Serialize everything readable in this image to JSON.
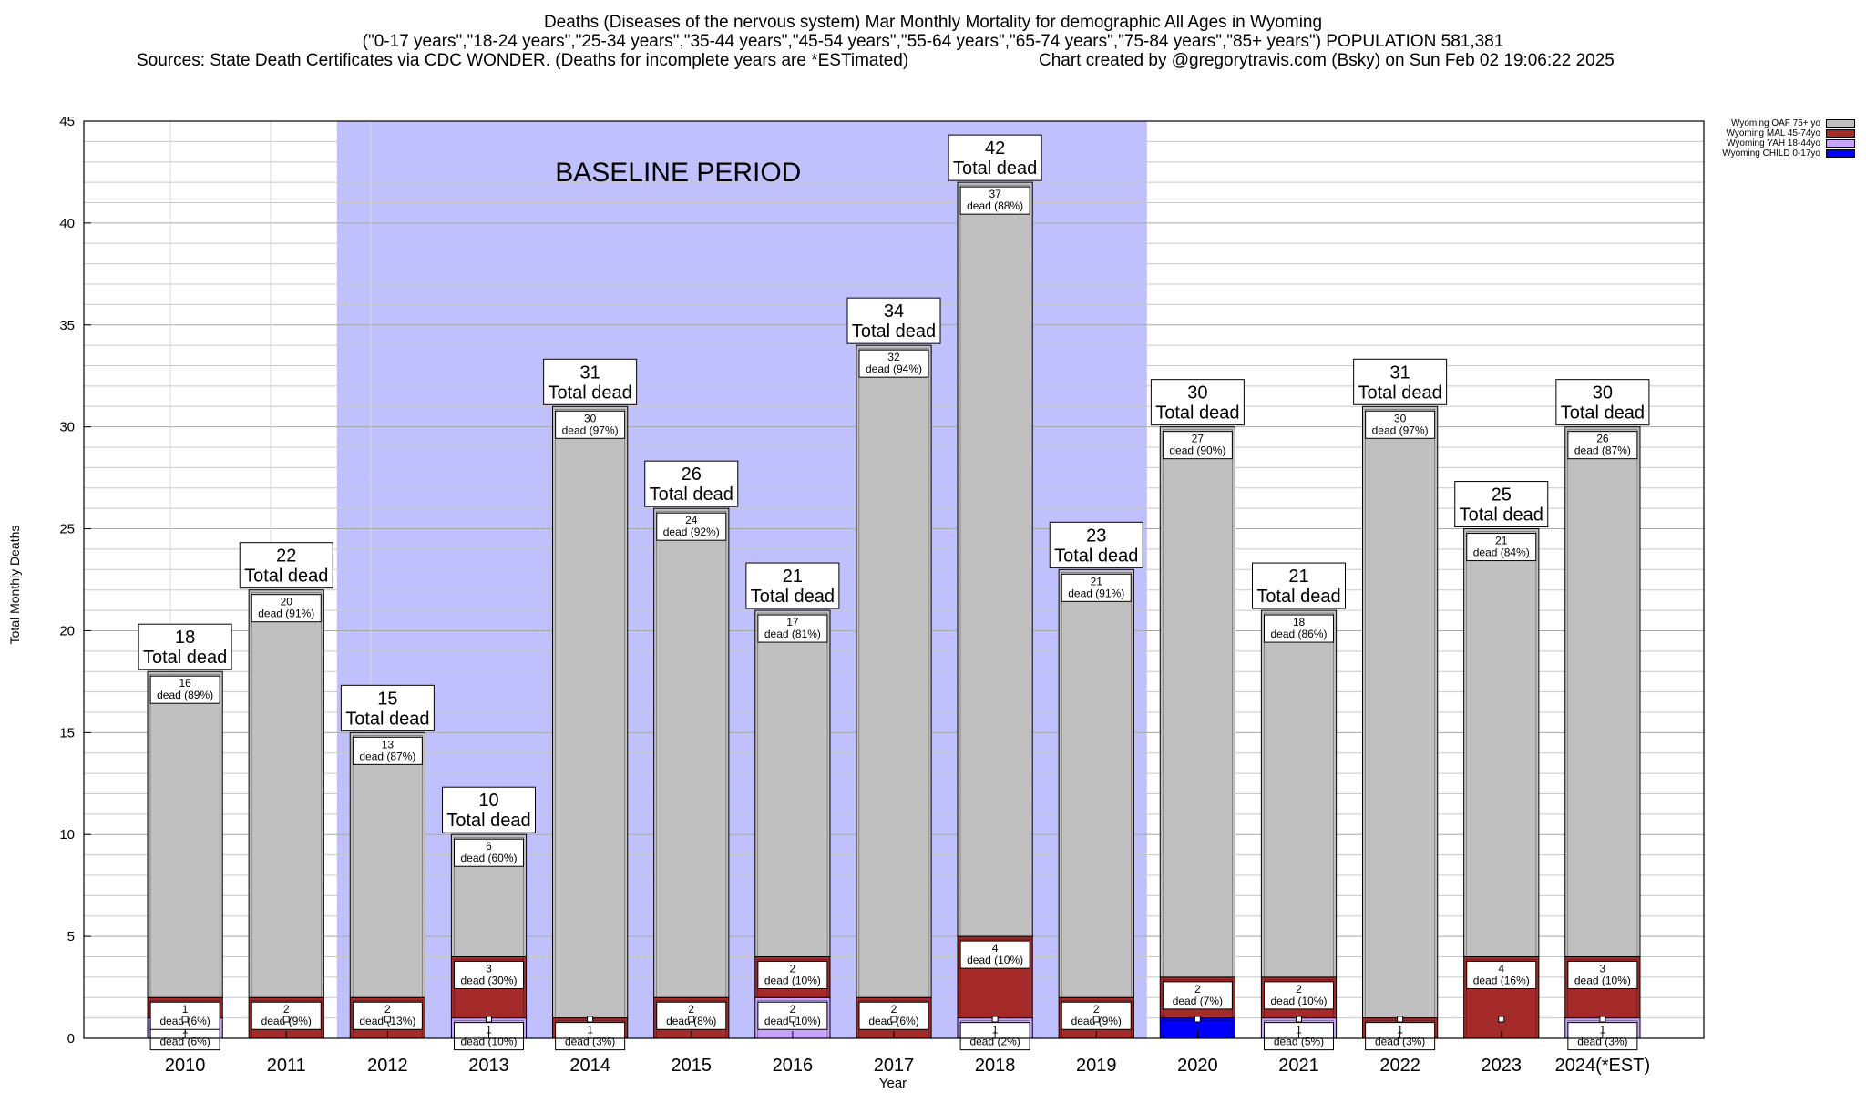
{
  "header": {
    "title_line1": "Deaths (Diseases of the nervous system) Mar Monthly Mortality for demographic All Ages in Wyoming",
    "title_line2": "(\"0-17 years\",\"18-24 years\",\"25-34 years\",\"35-44 years\",\"45-54 years\",\"55-64 years\",\"65-74 years\",\"75-84 years\",\"85+ years\") POPULATION 581,381",
    "sources": "Sources: State Death Certificates via CDC WONDER. (Deaths for incomplete years are *ESTimated)",
    "credit": "Chart created by @gregorytravis.com (Bsky) on Sun Feb 02 19:06:22 2025"
  },
  "legend": {
    "items": [
      {
        "label": "Wyoming OAF 75+ yo",
        "color": "#c0c0c0"
      },
      {
        "label": "Wyoming MAL 45-74yo",
        "color": "#a52a2a"
      },
      {
        "label": "Wyoming YAH 18-44yo",
        "color": "#c8a2ff"
      },
      {
        "label": "Wyoming CHILD 0-17yo",
        "color": "#0000ff"
      }
    ]
  },
  "chart_data": {
    "type": "bar",
    "stacked": true,
    "title": "Deaths (Diseases of the nervous system) Mar Monthly Mortality for demographic All Ages in Wyoming",
    "xlabel": "Year",
    "ylabel": "Total Monthly Deaths",
    "ylim": [
      0,
      45
    ],
    "yticks": [
      0,
      5,
      10,
      15,
      20,
      25,
      30,
      35,
      40,
      45
    ],
    "grid": true,
    "legend_position": "top-right",
    "baseline_label": "BASELINE PERIOD",
    "baseline_range": [
      "2012",
      "2019"
    ],
    "total_suffix": "Total dead",
    "categories": [
      "2010",
      "2011",
      "2012",
      "2013",
      "2014",
      "2015",
      "2016",
      "2017",
      "2018",
      "2019",
      "2020",
      "2021",
      "2022",
      "2023",
      "2024(*EST)"
    ],
    "totals": [
      18,
      22,
      15,
      10,
      31,
      26,
      21,
      34,
      42,
      23,
      30,
      21,
      31,
      25,
      30
    ],
    "series": [
      {
        "name": "Wyoming CHILD 0-17yo",
        "color": "#0000ff",
        "values": [
          0,
          0,
          0,
          0,
          0,
          0,
          0,
          0,
          0,
          0,
          1,
          0,
          0,
          0,
          0
        ],
        "labels": [
          "",
          "",
          "",
          "",
          "",
          "",
          "",
          "",
          "",
          "",
          "",
          "",
          "",
          "",
          ""
        ]
      },
      {
        "name": "Wyoming YAH 18-44yo",
        "color": "#c8a2ff",
        "values": [
          1,
          0,
          0,
          1,
          0,
          0,
          2,
          0,
          1,
          0,
          0,
          1,
          0,
          0,
          1
        ],
        "labels": [
          "1\ndead (6%)",
          "",
          "",
          "1\ndead (10%)",
          "",
          "",
          "2\ndead (10%)",
          "",
          "1\ndead (2%)",
          "",
          "",
          "1\ndead (5%)",
          "",
          "",
          "1\ndead (3%)"
        ]
      },
      {
        "name": "Wyoming MAL 45-74yo",
        "color": "#a52a2a",
        "values": [
          1,
          2,
          2,
          3,
          1,
          2,
          2,
          2,
          4,
          2,
          2,
          2,
          1,
          4,
          3
        ],
        "labels": [
          "1\ndead (6%)",
          "2\ndead (9%)",
          "2\ndead (13%)",
          "3\ndead (30%)",
          "1\ndead (3%)",
          "2\ndead (8%)",
          "2\ndead (10%)",
          "2\ndead (6%)",
          "4\ndead (10%)",
          "2\ndead (9%)",
          "2\ndead (7%)",
          "2\ndead (10%)",
          "1\ndead (3%)",
          "4\ndead (16%)",
          "3\ndead (10%)"
        ]
      },
      {
        "name": "Wyoming OAF 75+ yo",
        "color": "#c0c0c0",
        "values": [
          16,
          20,
          13,
          6,
          30,
          24,
          17,
          32,
          37,
          21,
          27,
          18,
          30,
          21,
          26
        ],
        "labels": [
          "16\ndead (89%)",
          "20\ndead (91%)",
          "13\ndead (87%)",
          "6\ndead (60%)",
          "30\ndead (97%)",
          "24\ndead (92%)",
          "17\ndead (81%)",
          "32\ndead (94%)",
          "37\ndead (88%)",
          "21\ndead (91%)",
          "27\ndead (90%)",
          "18\ndead (86%)",
          "30\ndead (97%)",
          "21\ndead (84%)",
          "26\ndead (87%)"
        ]
      }
    ]
  }
}
